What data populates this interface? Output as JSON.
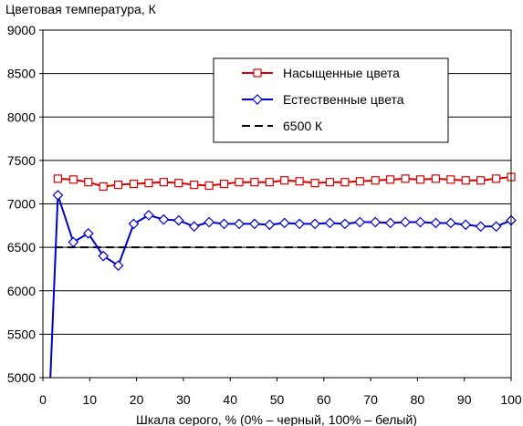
{
  "chart_data": {
    "type": "line",
    "title": "Цветовая температура, К",
    "xlabel": "Шкала серого, % (0% – черный, 100% – белый)",
    "ylabel": "",
    "xlim": [
      0,
      100
    ],
    "ylim": [
      5000,
      9000
    ],
    "xticks": [
      0,
      10,
      20,
      30,
      40,
      50,
      60,
      70,
      80,
      90,
      100
    ],
    "yticks": [
      5000,
      5500,
      6000,
      6500,
      7000,
      7500,
      8000,
      8500,
      9000
    ],
    "grid": "horizontal",
    "legend_position": "top-right",
    "series": [
      {
        "name": "Насыщенные цвета",
        "color": "#dd0000",
        "marker": "square",
        "x": [
          3.2,
          6.5,
          9.7,
          12.9,
          16.1,
          19.4,
          22.6,
          25.8,
          29,
          32.3,
          35.5,
          38.7,
          41.9,
          45.2,
          48.4,
          51.6,
          54.8,
          58.1,
          61.3,
          64.5,
          67.7,
          71,
          74.2,
          77.4,
          80.6,
          83.9,
          87.1,
          90.3,
          93.5,
          96.8,
          100
        ],
        "y": [
          7290,
          7280,
          7250,
          7200,
          7220,
          7230,
          7240,
          7250,
          7240,
          7220,
          7210,
          7230,
          7250,
          7250,
          7250,
          7270,
          7260,
          7240,
          7250,
          7250,
          7260,
          7270,
          7280,
          7290,
          7280,
          7290,
          7280,
          7270,
          7270,
          7290,
          7310
        ]
      },
      {
        "name": "Естественные цвета",
        "color": "#0000cc",
        "marker": "diamond",
        "x": [
          1.6,
          3.2,
          6.5,
          9.7,
          12.9,
          16.1,
          19.4,
          22.6,
          25.8,
          29,
          32.3,
          35.5,
          38.7,
          41.9,
          45.2,
          48.4,
          51.6,
          54.8,
          58.1,
          61.3,
          64.5,
          67.7,
          71,
          74.2,
          77.4,
          80.6,
          83.9,
          87.1,
          90.3,
          93.5,
          96.8,
          100
        ],
        "y": [
          5000,
          7100,
          6560,
          6660,
          6400,
          6290,
          6770,
          6870,
          6820,
          6810,
          6740,
          6790,
          6770,
          6770,
          6770,
          6760,
          6780,
          6770,
          6770,
          6780,
          6770,
          6790,
          6790,
          6780,
          6790,
          6790,
          6780,
          6780,
          6760,
          6740,
          6740,
          6810
        ]
      },
      {
        "name": "6500 К",
        "color": "#000000",
        "style": "dashed",
        "x": [
          2.5,
          100
        ],
        "y": [
          6500,
          6500
        ]
      }
    ]
  }
}
